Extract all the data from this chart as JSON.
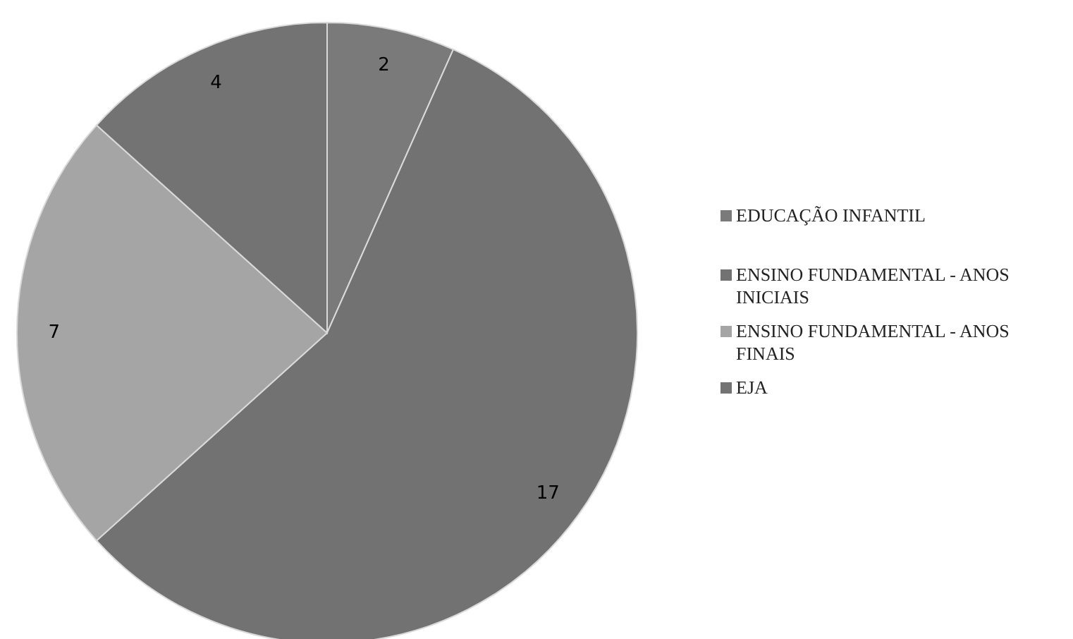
{
  "chart_data": {
    "type": "pie",
    "categories": [
      "EDUCAÇÃO INFANTIL",
      "ENSINO FUNDAMENTAL - ANOS INICIAIS",
      "ENSINO FUNDAMENTAL - ANOS FINAIS",
      "EJA"
    ],
    "values": [
      2,
      17,
      7,
      4
    ],
    "colors": [
      "#7a7a7a",
      "#727272",
      "#a5a5a5",
      "#737373"
    ],
    "data_labels": true,
    "legend": "right"
  }
}
